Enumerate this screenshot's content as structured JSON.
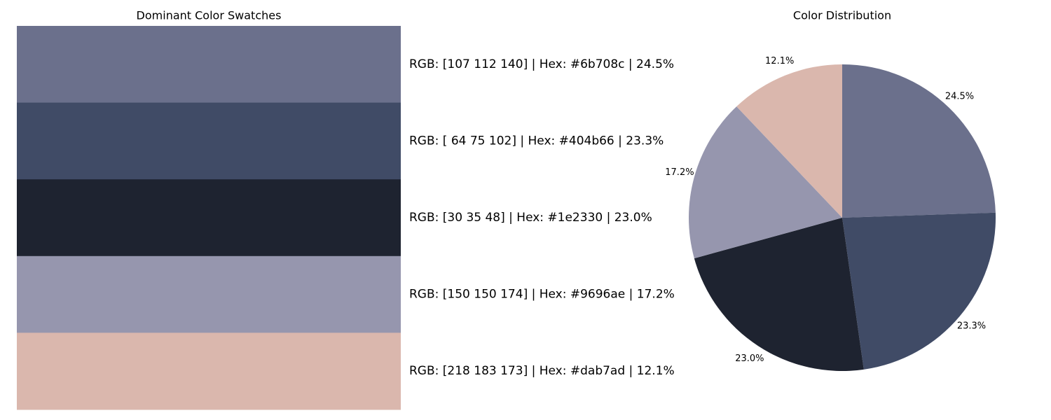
{
  "chart_data": [
    {
      "type": "swatches",
      "title": "Dominant Color Swatches",
      "labels": [
        "RGB: [107 112 140] | Hex: #6b708c | 24.5%",
        "RGB: [ 64  75 102] | Hex: #404b66 | 23.3%",
        "RGB: [30 35 48] | Hex: #1e2330 | 23.0%",
        "RGB: [150 150 174] | Hex: #9696ae | 17.2%",
        "RGB: [218 183 173] | Hex: #dab7ad | 12.1%"
      ],
      "colors": [
        "#6b708c",
        "#404b66",
        "#1e2330",
        "#9696ae",
        "#dab7ad"
      ]
    },
    {
      "type": "pie",
      "title": "Color Distribution",
      "values": [
        24.5,
        23.3,
        23.0,
        17.2,
        12.1
      ],
      "value_labels": [
        "24.5%",
        "23.3%",
        "23.0%",
        "17.2%",
        "12.1%"
      ],
      "colors": [
        "#6b708c",
        "#404b66",
        "#1e2330",
        "#9696ae",
        "#dab7ad"
      ]
    }
  ]
}
